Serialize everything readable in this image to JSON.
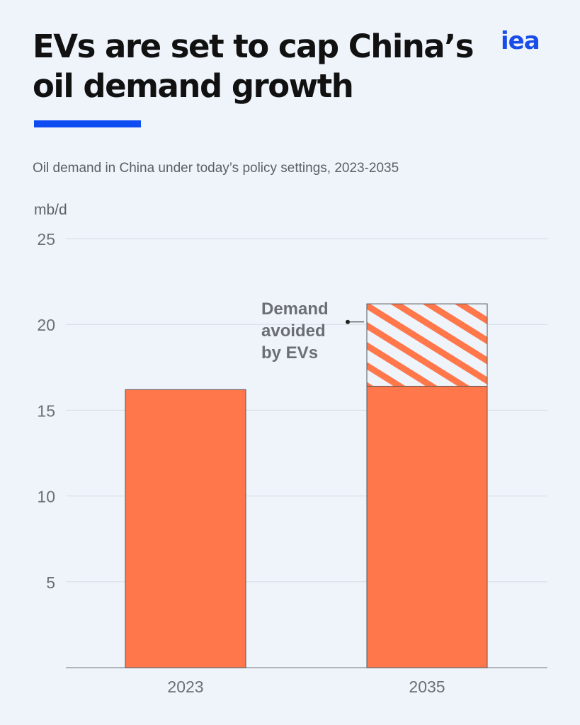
{
  "header": {
    "title_line1": "EVs are set to cap China’s",
    "title_line2": "oil demand growth",
    "logo": "iea",
    "subtitle": "Oil demand in China under today’s policy settings, 2023-2035"
  },
  "colors": {
    "bar": "#ff774a",
    "bar_outline": "#555555",
    "accent": "#0d4cf0",
    "logo": "#1a4de8",
    "grid": "#d6dbe3",
    "axis_text": "#6b6f75"
  },
  "chart_data": {
    "type": "bar",
    "stacked": true,
    "categories": [
      "2023",
      "2035"
    ],
    "series": [
      {
        "values": [
          16.2,
          16.4
        ]
      },
      {
        "name": "Demand avoided by EVs",
        "pattern": "hatched",
        "values": [
          0,
          4.8
        ]
      }
    ],
    "ylabel": "mb/d",
    "ylim": [
      0,
      25
    ],
    "yticks": [
      5,
      10,
      15,
      20,
      25
    ],
    "grid": true,
    "annotation": {
      "lines": [
        "Demand",
        "avoided",
        "by EVs"
      ],
      "target_category": "2035",
      "target_series": "Demand avoided by EVs"
    }
  }
}
